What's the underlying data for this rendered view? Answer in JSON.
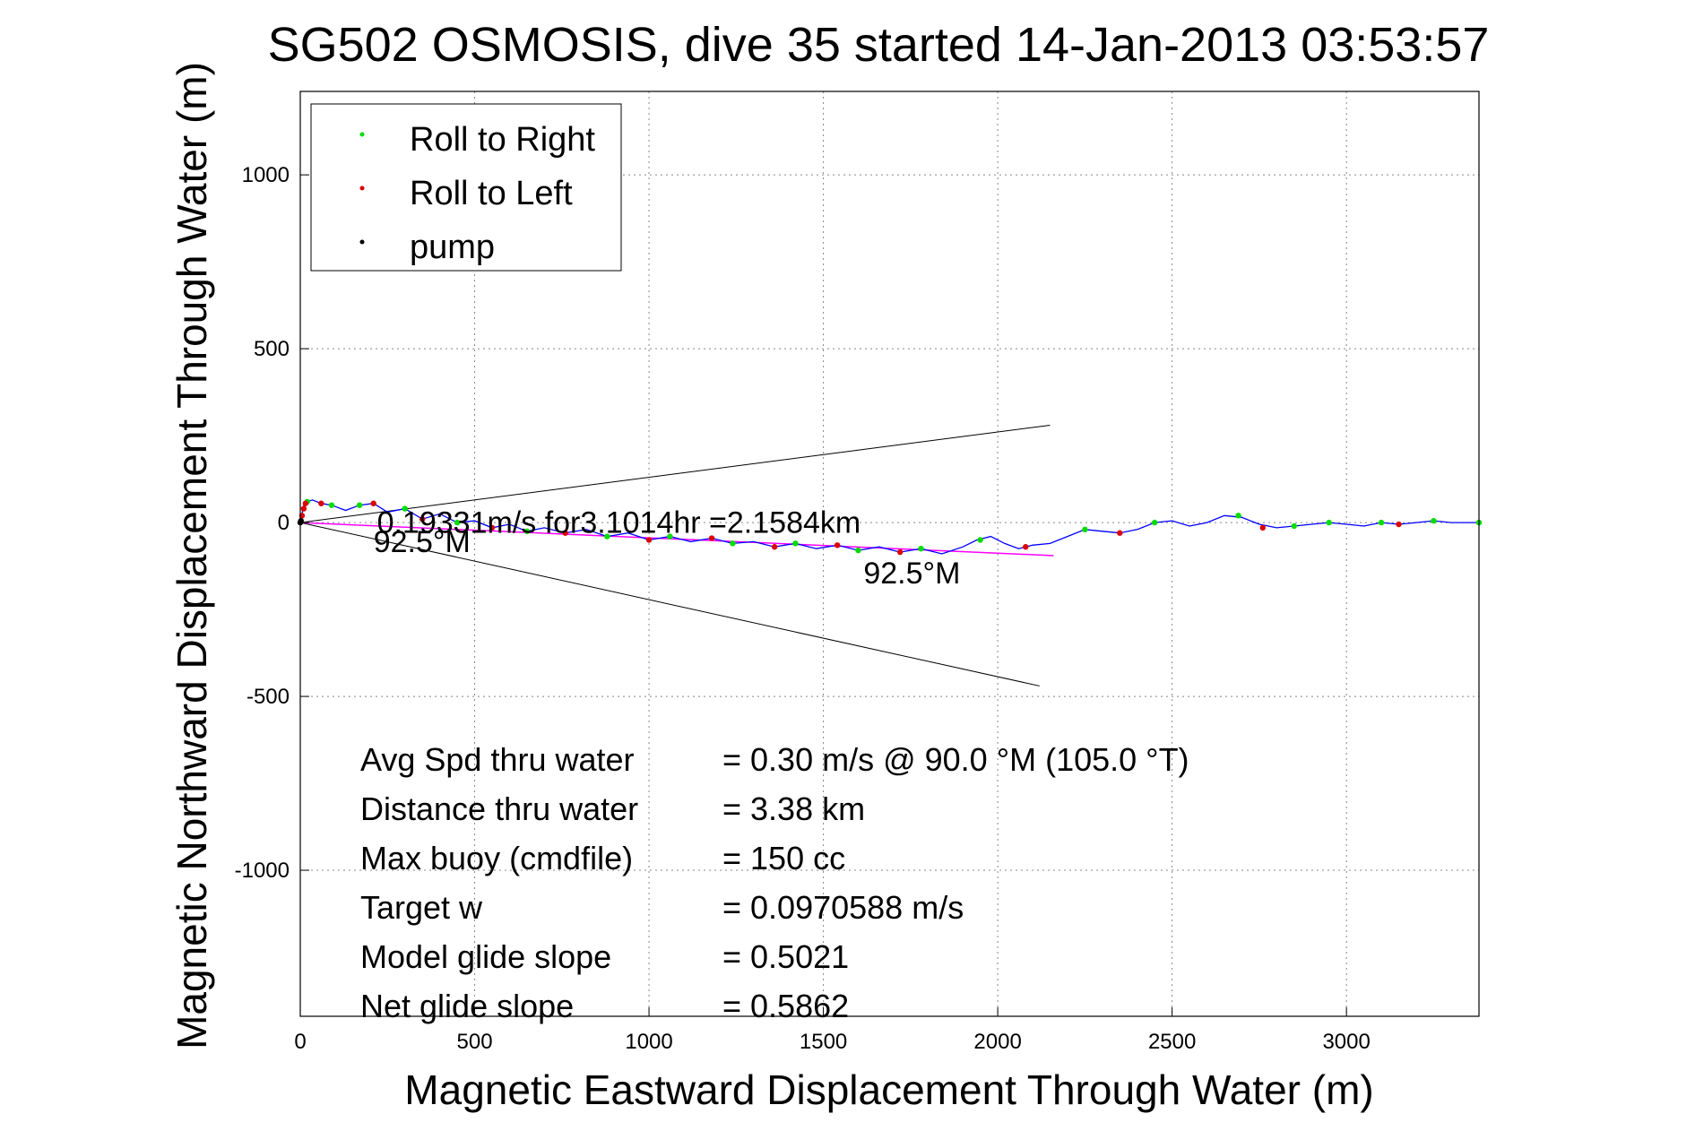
{
  "chart_data": {
    "type": "line",
    "title": "SG502 OSMOSIS, dive 35 started 14-Jan-2013 03:53:57",
    "xlabel": "Magnetic Eastward Displacement Through Water (m)",
    "ylabel": "Magnetic Northward Displacement Through Water (m)",
    "xlim": [
      0,
      3380
    ],
    "ylim": [
      -1420,
      1240
    ],
    "xticks": [
      0,
      500,
      1000,
      1500,
      2000,
      2500,
      3000
    ],
    "yticks": [
      -1000,
      -500,
      0,
      500,
      1000
    ],
    "grid": true,
    "legend_position": "top-left",
    "legend": [
      {
        "label": "Roll to Right",
        "color": "#00dd00"
      },
      {
        "label": "Roll to Left",
        "color": "#dd0000"
      },
      {
        "label": "pump",
        "color": "#000000"
      }
    ],
    "track": {
      "color": "#0000ff",
      "x": [
        0,
        10,
        20,
        35,
        60,
        90,
        130,
        170,
        210,
        250,
        300,
        350,
        400,
        450,
        500,
        550,
        600,
        650,
        700,
        760,
        820,
        880,
        940,
        1000,
        1060,
        1120,
        1180,
        1240,
        1300,
        1360,
        1420,
        1480,
        1540,
        1600,
        1660,
        1720,
        1780,
        1840,
        1900,
        1940,
        1980,
        2020,
        2060,
        2100,
        2150,
        2200,
        2250,
        2300,
        2350,
        2400,
        2450,
        2500,
        2550,
        2600,
        2650,
        2700,
        2750,
        2800,
        2850,
        2900,
        2950,
        3000,
        3050,
        3100,
        3150,
        3200,
        3250,
        3300,
        3380
      ],
      "y": [
        0,
        50,
        60,
        65,
        55,
        50,
        35,
        50,
        55,
        30,
        40,
        10,
        25,
        0,
        5,
        -15,
        -5,
        -25,
        -15,
        -30,
        -20,
        -40,
        -30,
        -50,
        -40,
        -55,
        -45,
        -60,
        -55,
        -70,
        -60,
        -75,
        -65,
        -80,
        -70,
        -85,
        -75,
        -90,
        -70,
        -50,
        -40,
        -60,
        -75,
        -65,
        -60,
        -40,
        -20,
        -25,
        -30,
        -20,
        0,
        5,
        -10,
        0,
        20,
        15,
        -5,
        -15,
        -10,
        -5,
        0,
        -5,
        -10,
        0,
        -5,
        0,
        5,
        0,
        0
      ]
    },
    "roll_right_points": {
      "x": [
        20,
        90,
        170,
        300,
        450,
        650,
        880,
        1060,
        1240,
        1420,
        1600,
        1780,
        1950,
        2250,
        2450,
        2690,
        2850,
        2950,
        3100,
        3250,
        3380
      ],
      "y": [
        60,
        50,
        50,
        40,
        0,
        -25,
        -40,
        -40,
        -60,
        -60,
        -80,
        -75,
        -50,
        -20,
        0,
        20,
        -10,
        0,
        0,
        5,
        0
      ]
    },
    "roll_left_points": {
      "x": [
        5,
        10,
        15,
        60,
        210,
        350,
        550,
        760,
        1000,
        1180,
        1360,
        1540,
        1720,
        2080,
        2350,
        2760,
        3150
      ],
      "y": [
        20,
        40,
        55,
        55,
        55,
        10,
        -15,
        -30,
        -50,
        -45,
        -70,
        -65,
        -85,
        -70,
        -30,
        -15,
        -5
      ]
    },
    "pump_points": {
      "x": [
        0,
        2
      ],
      "y": [
        0,
        5
      ]
    },
    "cone_lines": {
      "color": "#000000",
      "segments": [
        {
          "x": [
            0,
            2150
          ],
          "y": [
            0,
            280
          ]
        },
        {
          "x": [
            0,
            2120
          ],
          "y": [
            0,
            -470
          ]
        }
      ]
    },
    "mean_heading_line": {
      "color": "#ff00ff",
      "x": [
        0,
        2160
      ],
      "y": [
        0,
        -95
      ]
    },
    "annotations": [
      {
        "text": "0.19331m/s for3.1014hr =2.1584km",
        "x": 220,
        "y": -30
      },
      {
        "text": "92.5°M",
        "x": 210,
        "y": -85
      },
      {
        "text": "92.5°M",
        "x": 1615,
        "y": -175
      }
    ],
    "stats": [
      {
        "label": "Avg Spd thru water",
        "value": "=  0.30 m/s @  90.0 °M (105.0 °T)"
      },
      {
        "label": "Distance thru water",
        "value": "=  3.38 km"
      },
      {
        "label": "Max buoy (cmdfile)",
        "value": "= 150 cc"
      },
      {
        "label": "Target w",
        "value": "= 0.0970588 m/s"
      },
      {
        "label": "Model glide slope",
        "value": "= 0.5021"
      },
      {
        "label": "Net glide slope",
        "value": "= 0.5862"
      }
    ]
  }
}
